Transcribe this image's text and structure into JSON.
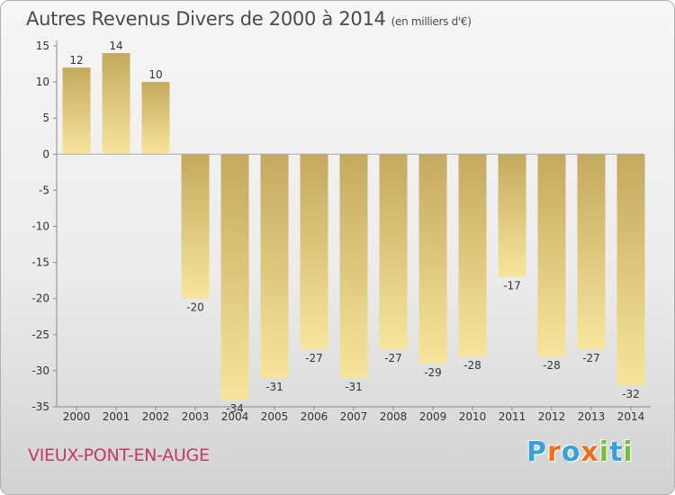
{
  "header": {
    "title": "Autres Revenus Divers de 2000 à 2014",
    "unit": "(en milliers d'€)"
  },
  "location": {
    "name": "VIEUX-PONT-EN-AUGE"
  },
  "brand": {
    "name": "Proxiti",
    "letters": [
      "P",
      "r",
      "o",
      "x",
      "i",
      "t",
      "i"
    ],
    "letter_colors": [
      "#3aa0d8",
      "#e8721c",
      "#3aa0d8",
      "#e8721c",
      "#7bbd3a",
      "#3aa0d8",
      "#7bbd3a"
    ]
  },
  "colors": {
    "bar_top": "#c4a95e",
    "bar_bottom": "#f7e59c",
    "zero_line": "#aaaaaa",
    "grid": "#cccccc"
  },
  "chart_data": {
    "type": "bar",
    "title": "Autres Revenus Divers de 2000 à 2014",
    "subtitle": "(en milliers d'€)",
    "xlabel": "",
    "ylabel": "",
    "categories": [
      "2000",
      "2001",
      "2002",
      "2003",
      "2004",
      "2005",
      "2006",
      "2007",
      "2008",
      "2009",
      "2010",
      "2011",
      "2012",
      "2013",
      "2014"
    ],
    "values": [
      12,
      14,
      10,
      -20,
      -34,
      -31,
      -27,
      -31,
      -27,
      -29,
      -28,
      -17,
      -28,
      -27,
      -32
    ],
    "ylim": [
      -35,
      15
    ],
    "yticks": [
      15,
      10,
      5,
      0,
      -5,
      -10,
      -15,
      -20,
      -25,
      -30,
      -35
    ],
    "grid": false,
    "legend": "none"
  }
}
